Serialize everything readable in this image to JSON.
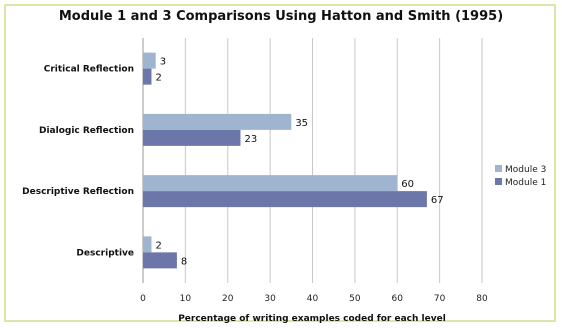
{
  "chart_data": {
    "type": "bar",
    "orientation": "horizontal",
    "title": "Module 1 and 3 Comparisons Using Hatton and Smith (1995)",
    "xlabel": "Percentage of writing examples coded for each level",
    "ylabel": "",
    "categories": [
      "Critical Reflection",
      "Dialogic Reflection",
      "Descriptive Reflection",
      "Descriptive"
    ],
    "series": [
      {
        "name": "Module 3",
        "values": [
          3,
          35,
          60,
          2
        ],
        "color": "#9fb5cf"
      },
      {
        "name": "Module 1",
        "values": [
          2,
          23,
          67,
          8
        ],
        "color": "#6c76a8"
      }
    ],
    "xlim": [
      0,
      80
    ],
    "xticks": [
      0,
      10,
      20,
      30,
      40,
      50,
      60,
      70,
      80
    ],
    "grid": true,
    "legend_position": "right"
  }
}
